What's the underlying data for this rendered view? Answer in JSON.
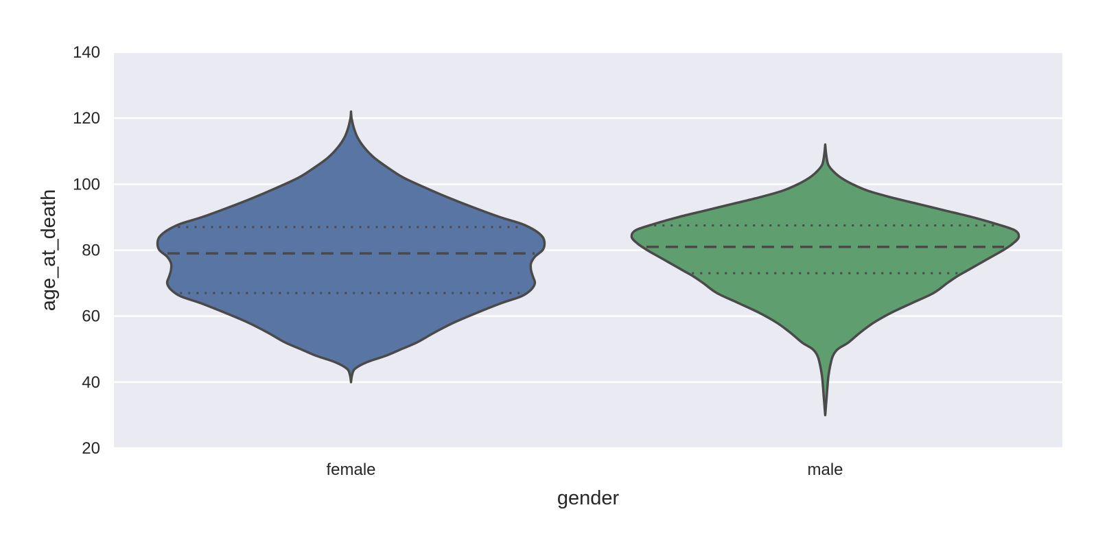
{
  "chart_data": {
    "type": "violin",
    "title": "",
    "xlabel": "gender",
    "ylabel": "age_at_death",
    "ylim": [
      20,
      140
    ],
    "yticks": [
      20,
      40,
      60,
      80,
      100,
      120,
      140
    ],
    "grid": true,
    "categories": [
      "female",
      "male"
    ],
    "colors": {
      "background": "#eaeaf2",
      "grid": "#ffffff",
      "outline": "#4a4a4a",
      "female": "#5975a4",
      "male": "#5f9e6e"
    },
    "violins": [
      {
        "category": "female",
        "min": 40,
        "max": 122,
        "q1": 67,
        "median": 79,
        "q3": 87,
        "density": [
          [
            40,
            0.0
          ],
          [
            42,
            0.005
          ],
          [
            44,
            0.02
          ],
          [
            46,
            0.08
          ],
          [
            48,
            0.18
          ],
          [
            50,
            0.26
          ],
          [
            52,
            0.34
          ],
          [
            55,
            0.43
          ],
          [
            58,
            0.53
          ],
          [
            61,
            0.65
          ],
          [
            64,
            0.78
          ],
          [
            66,
            0.88
          ],
          [
            68,
            0.93
          ],
          [
            70,
            0.95
          ],
          [
            72,
            0.94
          ],
          [
            74,
            0.93
          ],
          [
            76,
            0.93
          ],
          [
            78,
            0.95
          ],
          [
            80,
            0.99
          ],
          [
            82,
            1.0
          ],
          [
            84,
            0.99
          ],
          [
            86,
            0.95
          ],
          [
            88,
            0.88
          ],
          [
            90,
            0.77
          ],
          [
            93,
            0.63
          ],
          [
            96,
            0.5
          ],
          [
            99,
            0.38
          ],
          [
            102,
            0.27
          ],
          [
            105,
            0.19
          ],
          [
            108,
            0.12
          ],
          [
            111,
            0.07
          ],
          [
            114,
            0.035
          ],
          [
            117,
            0.015
          ],
          [
            120,
            0.003
          ],
          [
            122,
            0.0
          ]
        ]
      },
      {
        "category": "male",
        "min": 30,
        "max": 112,
        "q1": 73,
        "median": 81,
        "q3": 87.5,
        "density": [
          [
            30,
            0.0
          ],
          [
            33,
            0.004
          ],
          [
            36,
            0.008
          ],
          [
            39,
            0.012
          ],
          [
            42,
            0.017
          ],
          [
            45,
            0.026
          ],
          [
            48,
            0.04
          ],
          [
            50,
            0.065
          ],
          [
            52,
            0.12
          ],
          [
            55,
            0.18
          ],
          [
            58,
            0.25
          ],
          [
            61,
            0.34
          ],
          [
            64,
            0.45
          ],
          [
            67,
            0.56
          ],
          [
            70,
            0.63
          ],
          [
            72,
            0.68
          ],
          [
            74,
            0.74
          ],
          [
            76,
            0.8
          ],
          [
            78,
            0.86
          ],
          [
            80,
            0.92
          ],
          [
            82,
            0.97
          ],
          [
            84,
            1.0
          ],
          [
            86,
            0.98
          ],
          [
            88,
            0.88
          ],
          [
            90,
            0.76
          ],
          [
            92,
            0.62
          ],
          [
            94,
            0.48
          ],
          [
            96,
            0.34
          ],
          [
            98,
            0.22
          ],
          [
            100,
            0.14
          ],
          [
            102,
            0.08
          ],
          [
            104,
            0.04
          ],
          [
            106,
            0.015
          ],
          [
            109,
            0.005
          ],
          [
            112,
            0.0
          ]
        ]
      }
    ]
  }
}
